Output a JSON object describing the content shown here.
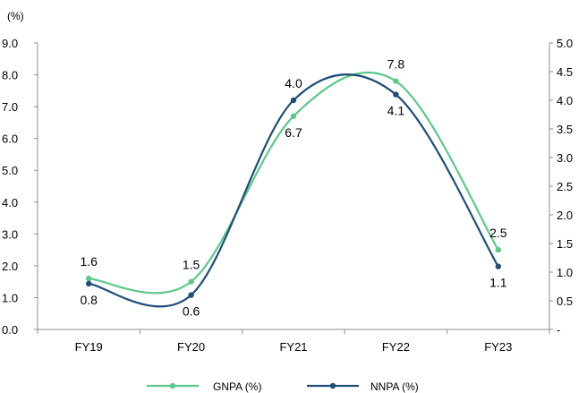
{
  "chart_data": {
    "type": "line",
    "unit_label": "(%)",
    "categories": [
      "FY19",
      "FY20",
      "FY21",
      "FY22",
      "FY23"
    ],
    "series": [
      {
        "name": "GNPA (%)",
        "axis": "left",
        "color": "#5cc98a",
        "values": [
          1.6,
          1.5,
          6.7,
          7.8,
          2.5
        ],
        "labels": [
          "1.6",
          "1.5",
          "6.7",
          "7.8",
          "2.5"
        ]
      },
      {
        "name": "NNPA (%)",
        "axis": "right",
        "color": "#1f4e79",
        "values": [
          0.8,
          0.6,
          4.0,
          4.1,
          1.1
        ],
        "labels": [
          "0.8",
          "0.6",
          "4.0",
          "4.1",
          "1.1"
        ]
      }
    ],
    "left_axis": {
      "min": 0,
      "max": 9,
      "ticks": [
        "0.0",
        "1.0",
        "2.0",
        "3.0",
        "4.0",
        "5.0",
        "6.0",
        "7.0",
        "8.0",
        "9.0"
      ]
    },
    "right_axis": {
      "min": 0,
      "max": 5,
      "ticks": [
        "-",
        "0.5",
        "1.0",
        "1.5",
        "2.0",
        "2.5",
        "3.0",
        "3.5",
        "4.0",
        "4.5",
        "5.0"
      ]
    },
    "grid": false,
    "legend_position": "bottom"
  }
}
